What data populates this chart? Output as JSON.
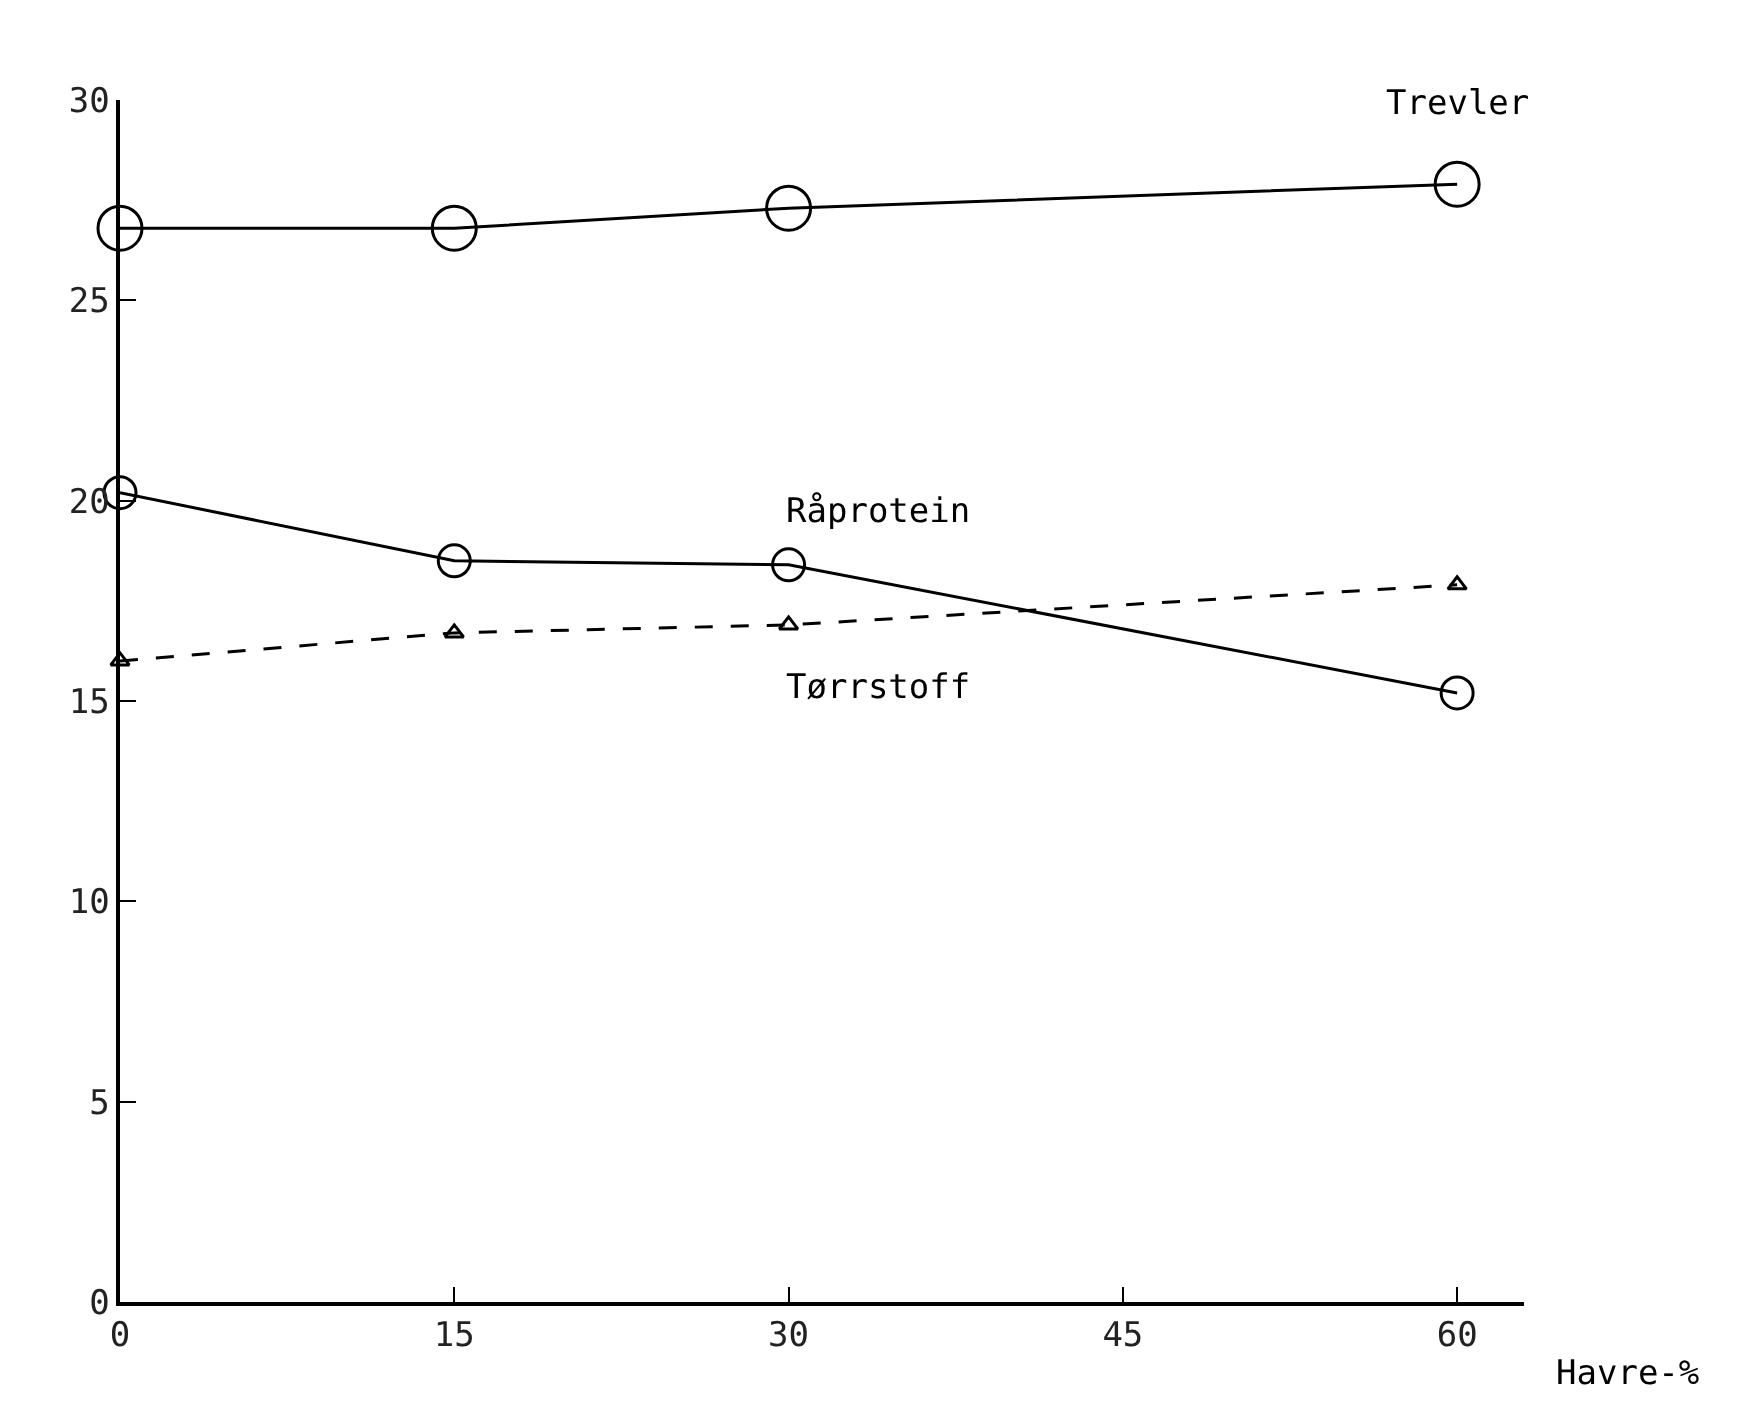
{
  "chart_data": {
    "type": "line",
    "xlabel": "Havre-%",
    "x": [
      0,
      15,
      30,
      60
    ],
    "series": [
      {
        "name": "Trevler",
        "color": "#000000",
        "values": [
          26.8,
          26.8,
          27.3,
          27.9
        ],
        "marker": "circle",
        "line_style": "solid"
      },
      {
        "name": "Råprotein",
        "color": "#000000",
        "values": [
          20.2,
          18.5,
          18.4,
          15.2
        ],
        "marker": "circle",
        "line_style": "solid"
      },
      {
        "name": "Tørrstoff",
        "color": "#000000",
        "values": [
          16.0,
          16.7,
          16.9,
          17.9
        ],
        "marker": "triangle",
        "line_style": "dashed"
      }
    ],
    "xlim": [
      0,
      63
    ],
    "xticks": [
      0,
      15,
      30,
      45,
      60
    ],
    "ylim": [
      0,
      30
    ],
    "yticks": [
      0,
      5,
      10,
      15,
      20,
      25,
      30
    ],
    "legend": false
  }
}
